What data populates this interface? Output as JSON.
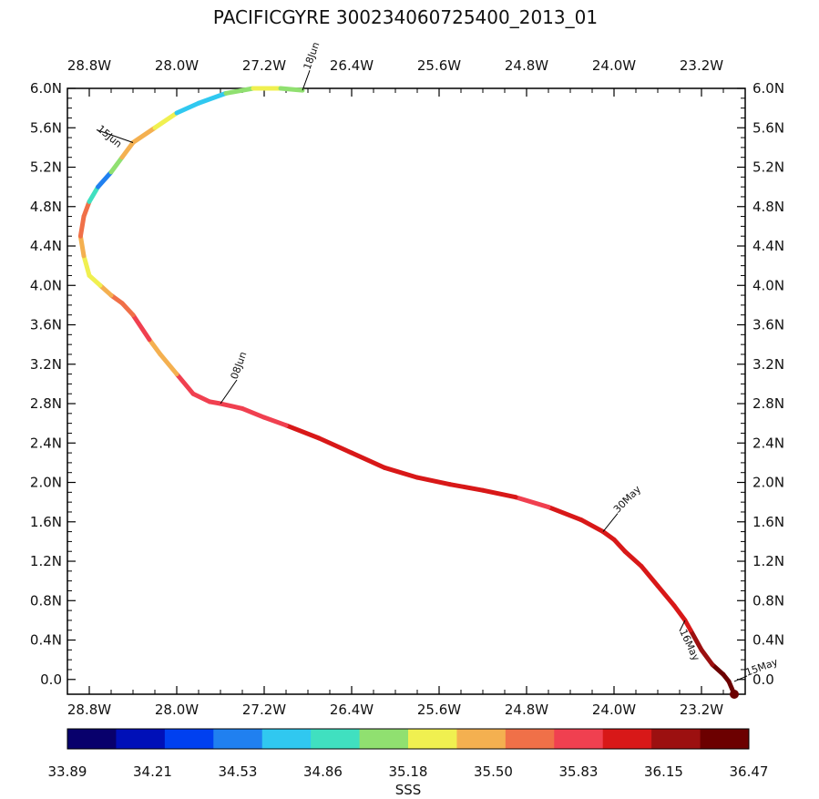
{
  "chart_data": {
    "type": "line",
    "title": "PACIFICGYRE 300234060725400_2013_01",
    "x_axis": {
      "range": [
        -29.0,
        -22.8
      ],
      "ticks": [
        -28.8,
        -28.0,
        -27.2,
        -26.4,
        -25.6,
        -24.8,
        -24.0,
        -23.2
      ],
      "tick_labels": [
        "28.8W",
        "28.0W",
        "27.2W",
        "26.4W",
        "25.6W",
        "24.8W",
        "24.0W",
        "23.2W"
      ]
    },
    "y_axis": {
      "range": [
        -0.15,
        6.0
      ],
      "ticks": [
        0.0,
        0.4,
        0.8,
        1.2,
        1.6,
        2.0,
        2.4,
        2.8,
        3.2,
        3.6,
        4.0,
        4.4,
        4.8,
        5.2,
        5.6,
        6.0
      ],
      "tick_labels": [
        "0.0",
        "0.4N",
        "0.8N",
        "1.2N",
        "1.6N",
        "2.0N",
        "2.4N",
        "2.8N",
        "3.2N",
        "3.6N",
        "4.0N",
        "4.4N",
        "4.8N",
        "5.2N",
        "5.6N",
        "6.0N"
      ]
    },
    "grid": false,
    "colorbar": {
      "label": "SSS",
      "tick_labels": [
        "33.89",
        "34.21",
        "34.53",
        "34.86",
        "35.18",
        "35.50",
        "35.83",
        "36.15",
        "36.47"
      ],
      "colors": [
        "#08006c",
        "#0010b8",
        "#0040f0",
        "#2080f0",
        "#30c8f0",
        "#40e0c0",
        "#90e070",
        "#f0f050",
        "#f4b050",
        "#f07048",
        "#f04050",
        "#d81818",
        "#9c1010",
        "#6c0000"
      ]
    },
    "track": {
      "lon": [
        -22.9,
        -22.95,
        -23.0,
        -23.1,
        -23.2,
        -23.3,
        -23.35,
        -23.45,
        -23.6,
        -23.75,
        -23.9,
        -24.0,
        -24.1,
        -24.3,
        -24.6,
        -24.9,
        -25.2,
        -25.5,
        -25.8,
        -26.1,
        -26.4,
        -26.7,
        -27.0,
        -27.2,
        -27.4,
        -27.6,
        -27.7,
        -27.85,
        -28.0,
        -28.15,
        -28.25,
        -28.4,
        -28.5,
        -28.6,
        -28.7,
        -28.8,
        -28.85,
        -28.88,
        -28.85,
        -28.8,
        -28.72,
        -28.6,
        -28.5,
        -28.4,
        -28.2,
        -28.0,
        -27.8,
        -27.55,
        -27.3,
        -27.05,
        -26.85
      ],
      "lat": [
        -0.15,
        -0.02,
        0.05,
        0.15,
        0.3,
        0.5,
        0.6,
        0.75,
        0.95,
        1.15,
        1.3,
        1.42,
        1.5,
        1.62,
        1.75,
        1.85,
        1.92,
        1.98,
        2.05,
        2.15,
        2.3,
        2.45,
        2.58,
        2.66,
        2.75,
        2.8,
        2.82,
        2.9,
        3.1,
        3.3,
        3.45,
        3.7,
        3.82,
        3.9,
        4.0,
        4.1,
        4.3,
        4.5,
        4.7,
        4.85,
        5.0,
        5.15,
        5.3,
        5.45,
        5.6,
        5.75,
        5.85,
        5.95,
        6.0,
        6.0,
        5.98
      ],
      "sss": [
        36.45,
        36.4,
        36.3,
        36.3,
        36.2,
        36.05,
        36.05,
        36.05,
        36.0,
        36.0,
        36.0,
        35.9,
        35.95,
        35.95,
        35.9,
        35.9,
        36.0,
        36.05,
        36.05,
        36.05,
        36.05,
        35.95,
        35.9,
        35.85,
        35.85,
        35.85,
        35.9,
        35.9,
        35.9,
        35.0,
        35.9,
        35.8,
        35.65,
        35.6,
        35.4,
        35.3,
        35.4,
        35.6,
        35.6,
        35.55,
        34.1,
        34.9,
        35.4,
        35.45,
        35.4,
        35.2,
        34.4,
        35.1,
        35.2,
        35.2,
        35.0
      ]
    },
    "annotations": [
      {
        "text": "18Jun",
        "lon": -26.85,
        "lat": 5.98
      },
      {
        "text": "15Jun",
        "lon": -28.4,
        "lat": 5.45
      },
      {
        "text": "08Jun",
        "lon": -27.6,
        "lat": 2.8
      },
      {
        "text": "30May",
        "lon": -24.1,
        "lat": 1.5
      },
      {
        "text": "15May",
        "lon": -22.9,
        "lat": -0.02
      },
      {
        "text": "16May",
        "lon": -23.35,
        "lat": 0.6
      }
    ]
  }
}
